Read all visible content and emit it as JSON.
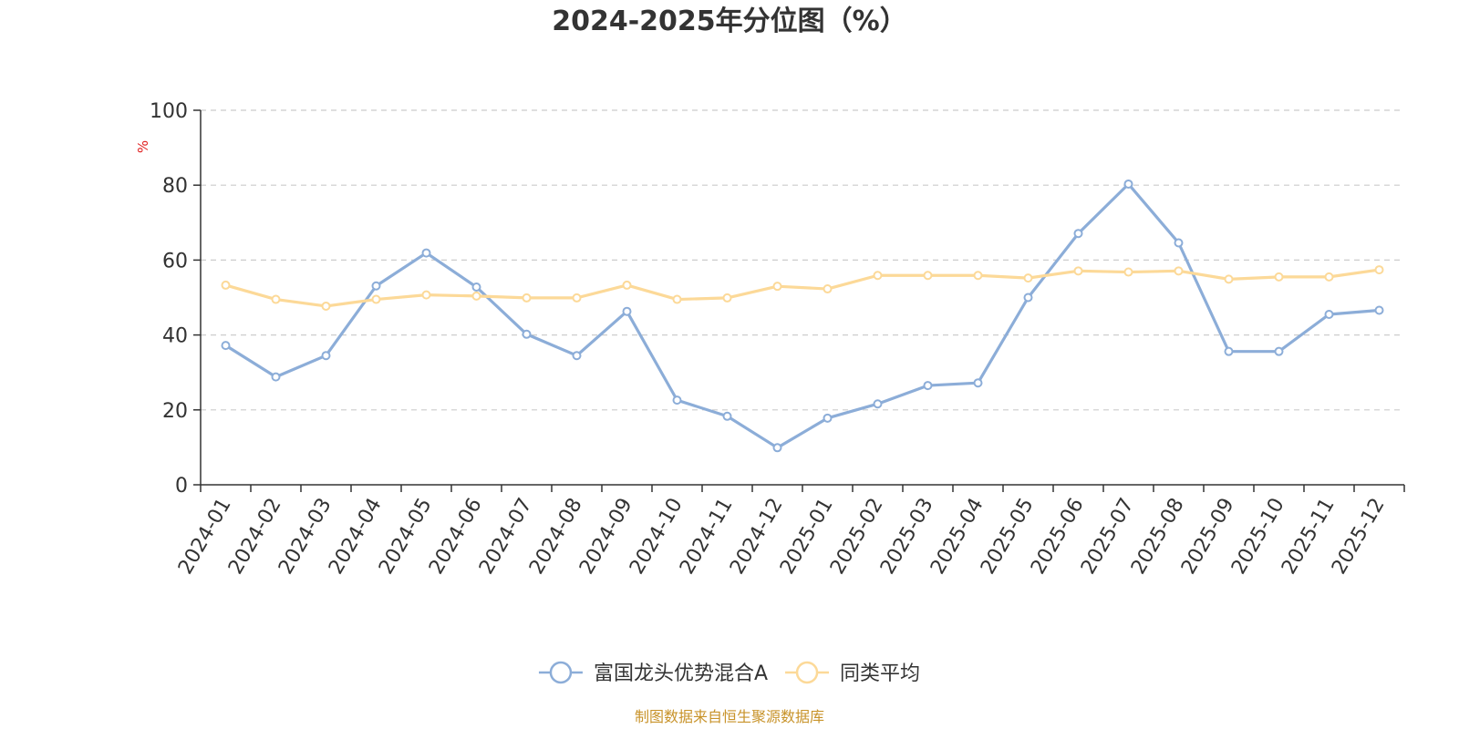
{
  "chart_data": {
    "type": "line",
    "title": "2024-2025年分位图（%）",
    "ylabel": "%",
    "xlabel": "",
    "ylim": [
      0,
      100
    ],
    "yticks": [
      0,
      20,
      40,
      60,
      80,
      100
    ],
    "grid": true,
    "legend_position": "bottom-center",
    "categories": [
      "2024-01",
      "2024-02",
      "2024-03",
      "2024-04",
      "2024-05",
      "2024-06",
      "2024-07",
      "2024-08",
      "2024-09",
      "2024-10",
      "2024-11",
      "2024-12",
      "2025-01",
      "2025-02",
      "2025-03",
      "2025-04",
      "2025-05",
      "2025-06",
      "2025-07",
      "2025-08",
      "2025-09",
      "2025-10",
      "2025-11",
      "2025-12"
    ],
    "series": [
      {
        "name": "富国龙头优势混合A",
        "color": "#8cadd8",
        "values": [
          37.2,
          28.8,
          34.5,
          53.1,
          61.9,
          52.8,
          40.2,
          34.5,
          46.3,
          22.6,
          18.3,
          9.9,
          17.8,
          21.6,
          26.5,
          27.2,
          50.0,
          67.1,
          80.3,
          64.6,
          35.6,
          35.6,
          45.5,
          46.6
        ]
      },
      {
        "name": "同类平均",
        "color": "#fcd998",
        "values": [
          53.3,
          49.5,
          47.7,
          49.5,
          50.7,
          50.4,
          49.9,
          49.9,
          53.3,
          49.5,
          49.9,
          53.0,
          52.3,
          55.9,
          55.9,
          55.9,
          55.2,
          57.1,
          56.8,
          57.1,
          54.9,
          55.5,
          55.5,
          57.4
        ]
      }
    ]
  },
  "source_text": "制图数据来自恒生聚源数据库"
}
